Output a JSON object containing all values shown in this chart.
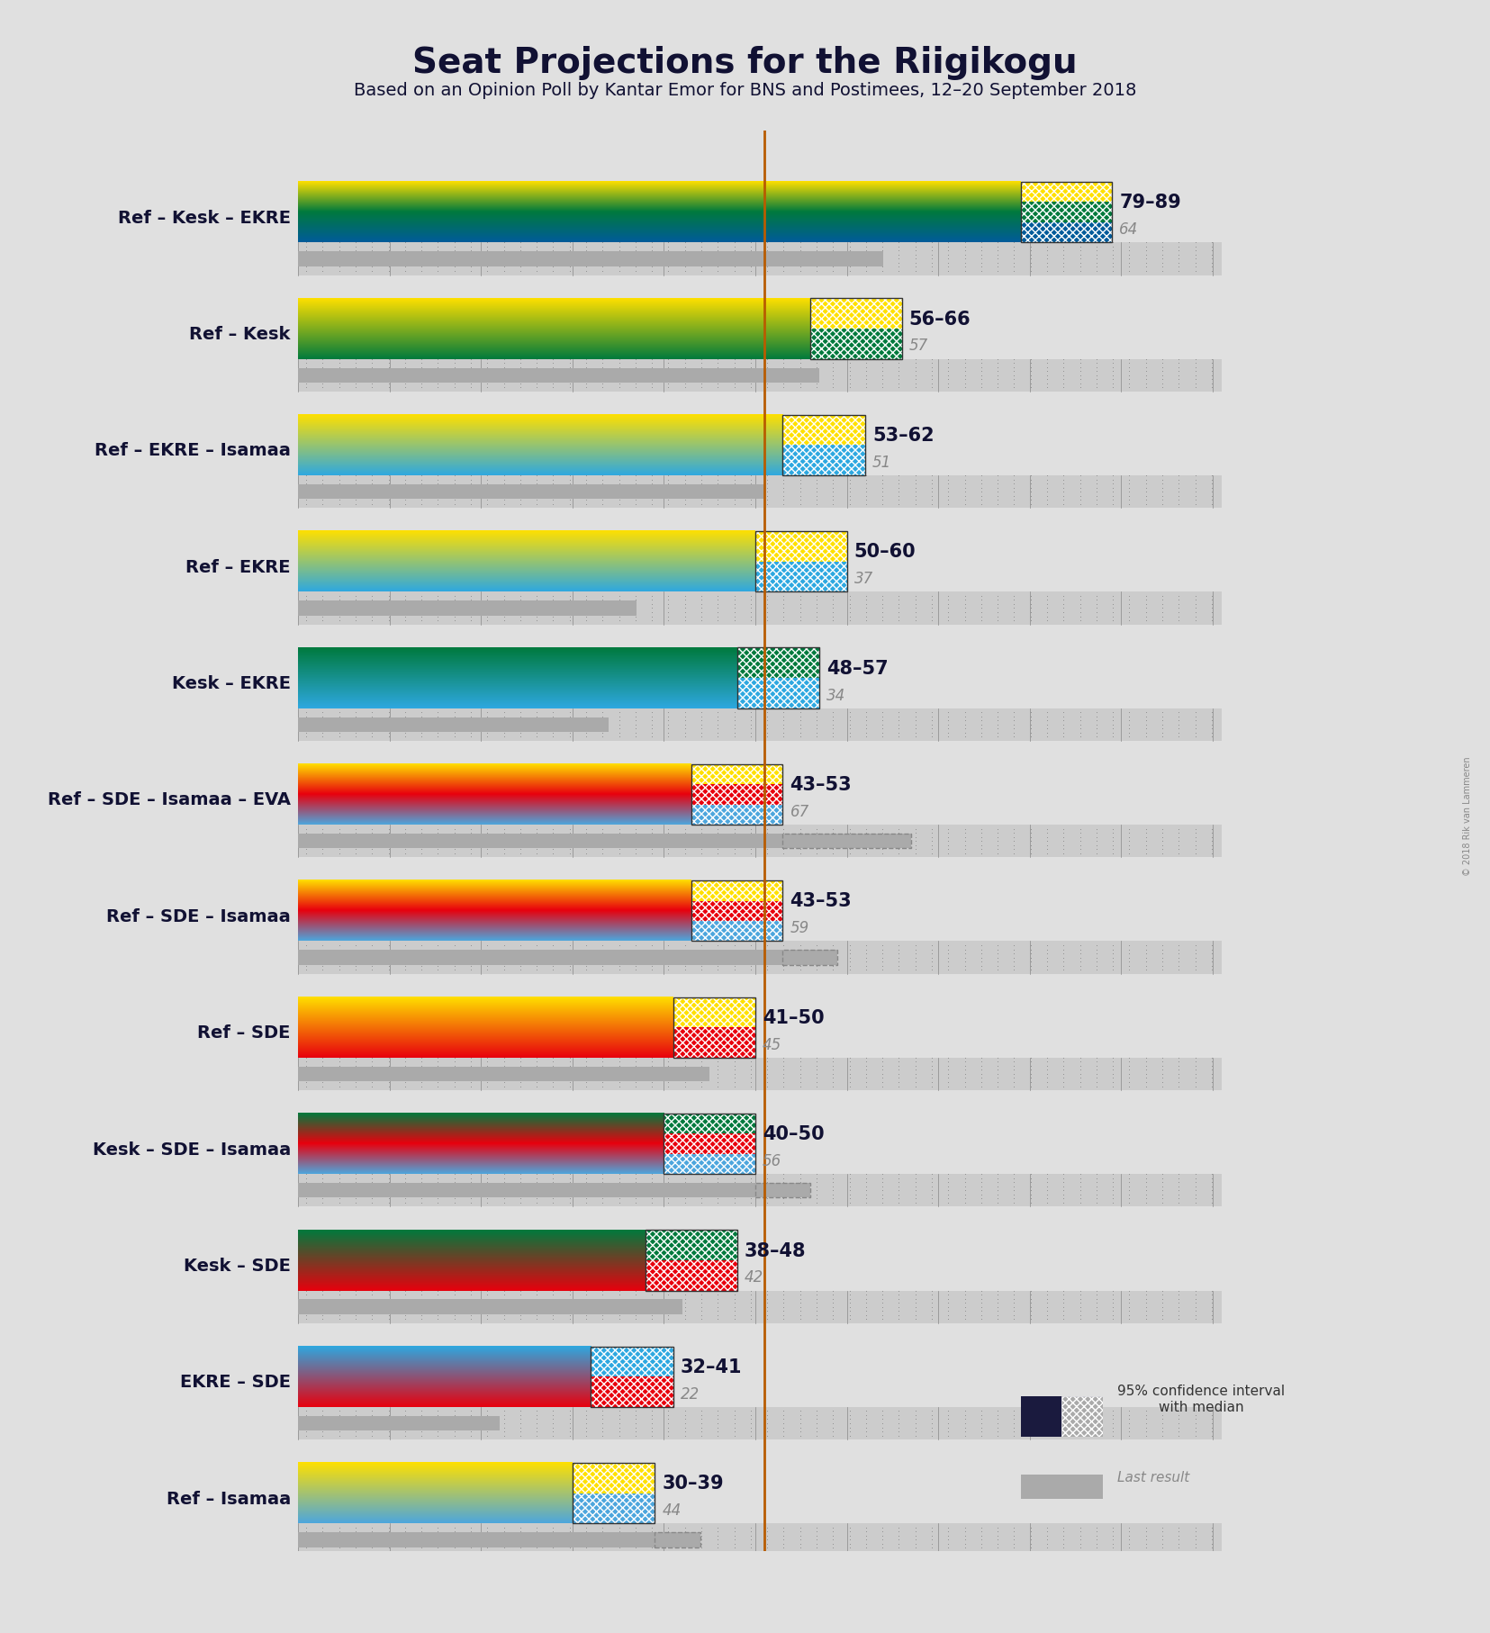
{
  "title": "Seat Projections for the Riigikogu",
  "subtitle": "Based on an Opinion Poll by Kantar Emor for BNS and Postimees, 12–20 September 2018",
  "copyright": "© 2018 Rik van Lammeren",
  "majority_line": 51,
  "xlim_max": 101,
  "background_color": "#e0e0e0",
  "coalitions": [
    {
      "label": "Ref – Kesk – EKRE",
      "ci_low": 79,
      "ci_high": 89,
      "median": 64,
      "last_result": 64,
      "label_range": "79–89",
      "colors_top_to_bottom": [
        "#FFE000",
        "#007A3D",
        "#005B9A"
      ]
    },
    {
      "label": "Ref – Kesk",
      "ci_low": 56,
      "ci_high": 66,
      "median": 57,
      "last_result": 57,
      "label_range": "56–66",
      "colors_top_to_bottom": [
        "#FFE000",
        "#007A3D"
      ]
    },
    {
      "label": "Ref – EKRE – Isamaa",
      "ci_low": 53,
      "ci_high": 62,
      "median": 51,
      "last_result": 51,
      "label_range": "53–62",
      "colors_top_to_bottom": [
        "#FFE000",
        "#2EA8E0"
      ]
    },
    {
      "label": "Ref – EKRE",
      "ci_low": 50,
      "ci_high": 60,
      "median": 37,
      "last_result": 37,
      "label_range": "50–60",
      "colors_top_to_bottom": [
        "#FFE000",
        "#2EA8E0"
      ]
    },
    {
      "label": "Kesk – EKRE",
      "ci_low": 48,
      "ci_high": 57,
      "median": 34,
      "last_result": 34,
      "label_range": "48–57",
      "colors_top_to_bottom": [
        "#007A3D",
        "#2EA8E0"
      ]
    },
    {
      "label": "Ref – SDE – Isamaa – EVA",
      "ci_low": 43,
      "ci_high": 53,
      "median": 67,
      "last_result": 67,
      "label_range": "43–53",
      "colors_top_to_bottom": [
        "#FFE000",
        "#E8000D",
        "#4DA6DD"
      ]
    },
    {
      "label": "Ref – SDE – Isamaa",
      "ci_low": 43,
      "ci_high": 53,
      "median": 59,
      "last_result": 59,
      "label_range": "43–53",
      "colors_top_to_bottom": [
        "#FFE000",
        "#E8000D",
        "#4DA6DD"
      ]
    },
    {
      "label": "Ref – SDE",
      "ci_low": 41,
      "ci_high": 50,
      "median": 45,
      "last_result": 45,
      "label_range": "41–50",
      "colors_top_to_bottom": [
        "#FFE000",
        "#E8000D"
      ]
    },
    {
      "label": "Kesk – SDE – Isamaa",
      "ci_low": 40,
      "ci_high": 50,
      "median": 56,
      "last_result": 56,
      "label_range": "40–50",
      "colors_top_to_bottom": [
        "#007A3D",
        "#E8000D",
        "#4DA6DD"
      ]
    },
    {
      "label": "Kesk – SDE",
      "ci_low": 38,
      "ci_high": 48,
      "median": 42,
      "last_result": 42,
      "label_range": "38–48",
      "colors_top_to_bottom": [
        "#007A3D",
        "#E8000D"
      ]
    },
    {
      "label": "EKRE – SDE",
      "ci_low": 32,
      "ci_high": 41,
      "median": 22,
      "last_result": 22,
      "label_range": "32–41",
      "colors_top_to_bottom": [
        "#2EA8E0",
        "#E8000D"
      ]
    },
    {
      "label": "Ref – Isamaa",
      "ci_low": 30,
      "ci_high": 39,
      "median": 44,
      "last_result": 44,
      "label_range": "30–39",
      "colors_top_to_bottom": [
        "#FFE000",
        "#4DA6DD"
      ]
    }
  ]
}
